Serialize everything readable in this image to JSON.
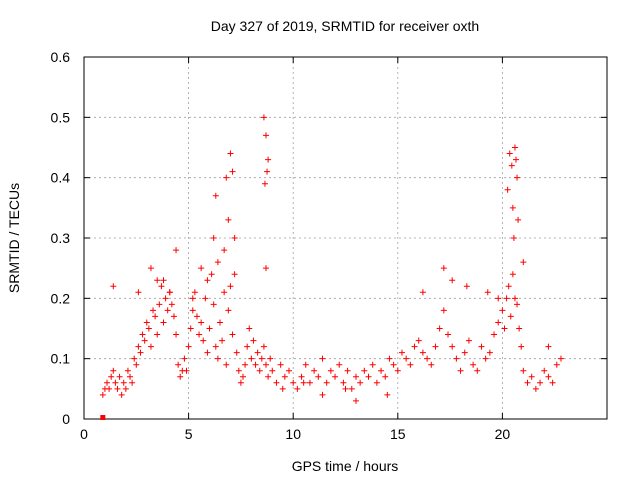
{
  "chart_data": {
    "type": "scatter",
    "title": "Day 327 of 2019, SRMTID for receiver oxth",
    "xlabel": "GPS time / hours",
    "ylabel": "SRMTID / TECUs",
    "xlim": [
      0,
      25
    ],
    "ylim": [
      0,
      0.6
    ],
    "xticks": [
      0,
      5,
      10,
      15,
      20
    ],
    "xtick_labels": [
      "0",
      "5",
      "10",
      "15",
      "20"
    ],
    "yticks": [
      0,
      0.1,
      0.2,
      0.3,
      0.4,
      0.5,
      0.6
    ],
    "ytick_labels": [
      "0",
      "0.1",
      "0.2",
      "0.3",
      "0.4",
      "0.5",
      "0.6"
    ],
    "grid": true,
    "marker_color": "#ff0000",
    "series": [
      {
        "name": "SRMTID",
        "marker": "+",
        "x": [
          0.9,
          1.0,
          1.1,
          1.2,
          1.3,
          1.4,
          1.5,
          1.6,
          1.7,
          1.8,
          1.9,
          2.0,
          2.1,
          2.2,
          2.3,
          2.4,
          2.5,
          2.6,
          2.7,
          2.8,
          2.9,
          3.0,
          3.1,
          3.2,
          3.3,
          3.4,
          3.5,
          3.6,
          3.7,
          3.8,
          3.9,
          4.0,
          4.1,
          4.2,
          4.3,
          4.4,
          4.5,
          4.6,
          4.7,
          4.8,
          4.9,
          5.0,
          5.1,
          5.2,
          5.3,
          5.4,
          5.5,
          5.6,
          5.7,
          5.8,
          5.9,
          6.0,
          6.1,
          6.2,
          6.3,
          6.4,
          6.5,
          6.6,
          6.7,
          6.8,
          6.9,
          7.0,
          7.1,
          7.2,
          7.3,
          7.4,
          7.5,
          7.6,
          7.7,
          7.8,
          7.9,
          8.0,
          8.1,
          8.2,
          8.3,
          8.4,
          8.5,
          8.6,
          8.7,
          8.8,
          8.9,
          9.0,
          9.2,
          9.4,
          9.6,
          9.8,
          10.0,
          10.2,
          10.4,
          10.6,
          10.8,
          11.0,
          11.2,
          11.4,
          11.6,
          11.8,
          12.0,
          12.2,
          12.4,
          12.6,
          12.8,
          13.0,
          13.2,
          13.4,
          13.6,
          13.8,
          14.0,
          14.2,
          14.4,
          14.6,
          14.8,
          15.0,
          15.2,
          15.4,
          15.6,
          15.8,
          16.0,
          16.2,
          16.4,
          16.6,
          16.8,
          17.0,
          17.2,
          17.4,
          17.6,
          17.8,
          18.0,
          18.2,
          18.4,
          18.6,
          18.8,
          19.0,
          19.2,
          19.4,
          19.6,
          19.8,
          20.0,
          20.1,
          20.2,
          20.3,
          20.4,
          20.5,
          20.6,
          20.7,
          20.8,
          20.9,
          21.0,
          21.2,
          21.4,
          21.6,
          21.8,
          22.0,
          22.2,
          22.4,
          22.6,
          22.8,
          1.4,
          2.6,
          3.2,
          3.8,
          4.4,
          5.6,
          6.3,
          6.8,
          7.2,
          8.6,
          8.7,
          8.8,
          8.75,
          8.65,
          8.7,
          7.0,
          7.1,
          6.9,
          6.7,
          6.4,
          5.9,
          6.2,
          16.2,
          17.2,
          17.6,
          18.3,
          19.3,
          20.35,
          20.45,
          20.6,
          20.65,
          20.7,
          20.25,
          20.5,
          20.75,
          20.55,
          21.0,
          22.2,
          19.8,
          4.1,
          3.5,
          5.2,
          9.5,
          11.4,
          13.0,
          14.5,
          12.5,
          10.5
        ],
        "y": [
          0.04,
          0.05,
          0.06,
          0.05,
          0.07,
          0.08,
          0.06,
          0.05,
          0.07,
          0.04,
          0.06,
          0.05,
          0.08,
          0.07,
          0.06,
          0.1,
          0.09,
          0.12,
          0.11,
          0.14,
          0.13,
          0.16,
          0.15,
          0.12,
          0.18,
          0.17,
          0.14,
          0.19,
          0.22,
          0.16,
          0.2,
          0.18,
          0.21,
          0.19,
          0.17,
          0.14,
          0.09,
          0.07,
          0.08,
          0.1,
          0.08,
          0.12,
          0.15,
          0.18,
          0.21,
          0.17,
          0.14,
          0.16,
          0.13,
          0.2,
          0.11,
          0.15,
          0.24,
          0.19,
          0.12,
          0.1,
          0.16,
          0.13,
          0.21,
          0.09,
          0.18,
          0.22,
          0.14,
          0.24,
          0.11,
          0.08,
          0.06,
          0.07,
          0.09,
          0.12,
          0.15,
          0.1,
          0.13,
          0.09,
          0.11,
          0.08,
          0.1,
          0.12,
          0.09,
          0.07,
          0.1,
          0.08,
          0.06,
          0.09,
          0.07,
          0.08,
          0.06,
          0.05,
          0.07,
          0.09,
          0.06,
          0.08,
          0.07,
          0.1,
          0.06,
          0.08,
          0.07,
          0.09,
          0.06,
          0.08,
          0.05,
          0.07,
          0.06,
          0.08,
          0.07,
          0.09,
          0.06,
          0.08,
          0.07,
          0.1,
          0.09,
          0.08,
          0.11,
          0.1,
          0.09,
          0.12,
          0.13,
          0.11,
          0.1,
          0.09,
          0.12,
          0.15,
          0.18,
          0.14,
          0.12,
          0.1,
          0.08,
          0.11,
          0.13,
          0.09,
          0.08,
          0.12,
          0.1,
          0.11,
          0.14,
          0.16,
          0.18,
          0.15,
          0.2,
          0.22,
          0.17,
          0.24,
          0.2,
          0.19,
          0.15,
          0.12,
          0.08,
          0.06,
          0.07,
          0.05,
          0.06,
          0.08,
          0.07,
          0.06,
          0.09,
          0.1,
          0.22,
          0.21,
          0.25,
          0.23,
          0.28,
          0.25,
          0.37,
          0.4,
          0.3,
          0.5,
          0.47,
          0.43,
          0.41,
          0.39,
          0.25,
          0.44,
          0.41,
          0.33,
          0.28,
          0.26,
          0.23,
          0.3,
          0.21,
          0.25,
          0.23,
          0.22,
          0.21,
          0.44,
          0.42,
          0.45,
          0.43,
          0.4,
          0.38,
          0.35,
          0.33,
          0.3,
          0.26,
          0.12,
          0.2,
          0.21,
          0.23,
          0.2,
          0.05,
          0.04,
          0.03,
          0.04,
          0.05,
          0.06
        ]
      }
    ]
  }
}
